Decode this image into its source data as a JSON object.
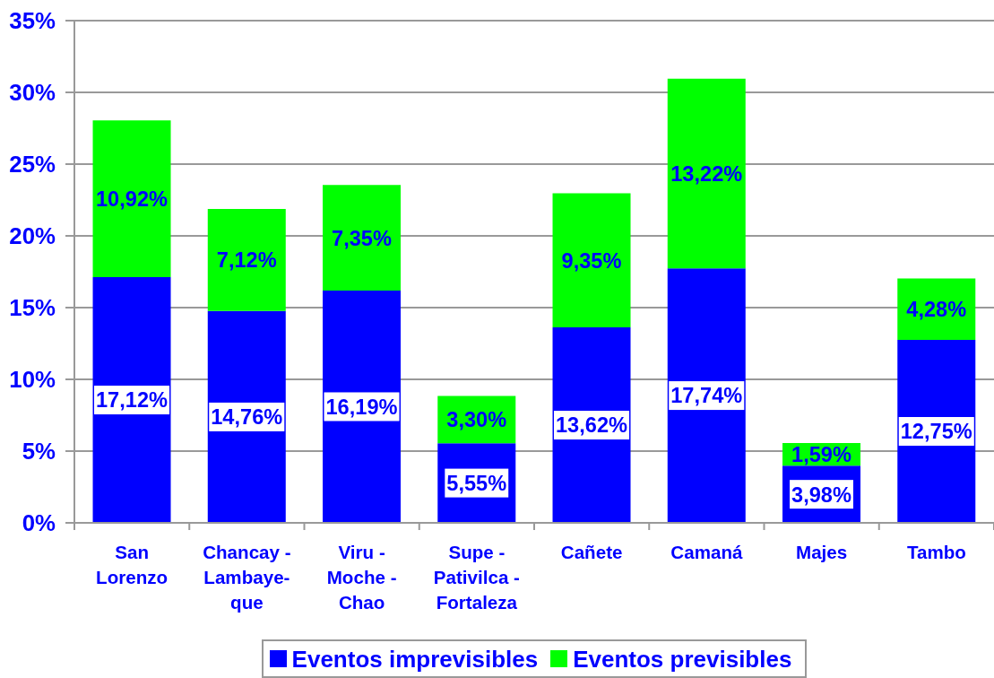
{
  "chart_data": {
    "type": "bar",
    "stacked": true,
    "categories": [
      "San Lorenzo",
      "Chancay - Lambaye-que",
      "Viru - Moche - Chao",
      "Supe - Pativilca - Fortaleza",
      "Cañete",
      "Camaná",
      "Majes",
      "Tambo"
    ],
    "series": [
      {
        "name": "Eventos imprevisibles",
        "color": "#0000ff",
        "values": [
          17.12,
          14.76,
          16.19,
          5.55,
          13.62,
          17.74,
          3.98,
          12.75
        ],
        "value_labels": [
          "17,12%",
          "14,76%",
          "16,19%",
          "5,55%",
          "13,62%",
          "17,74%",
          "3,98%",
          "12,75%"
        ]
      },
      {
        "name": "Eventos previsibles",
        "color": "#00ff00",
        "values": [
          10.92,
          7.12,
          7.35,
          3.3,
          9.35,
          13.22,
          1.59,
          4.28
        ],
        "value_labels": [
          "10,92%",
          "7,12%",
          "7,35%",
          "3,30%",
          "9,35%",
          "13,22%",
          "1,59%",
          "4,28%"
        ]
      }
    ],
    "ylim": [
      0,
      35
    ],
    "yticks": [
      {
        "value": 0,
        "label": "0%"
      },
      {
        "value": 5,
        "label": "5%"
      },
      {
        "value": 10,
        "label": "10%"
      },
      {
        "value": 15,
        "label": "15%"
      },
      {
        "value": 20,
        "label": "20%"
      },
      {
        "value": 25,
        "label": "25%"
      },
      {
        "value": 30,
        "label": "30%"
      },
      {
        "value": 35,
        "label": "35%"
      }
    ],
    "grid": "y",
    "legend": "bottom"
  }
}
